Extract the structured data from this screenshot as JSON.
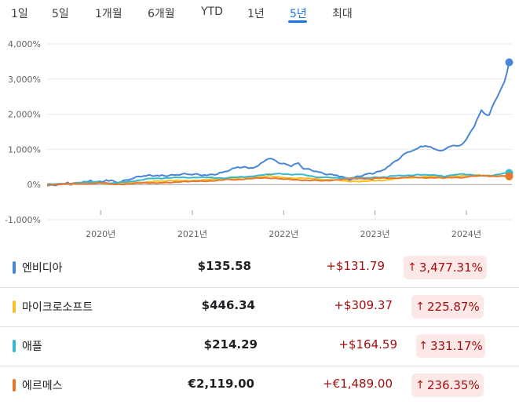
{
  "tabs": [
    {
      "label": "1일"
    },
    {
      "label": "5일"
    },
    {
      "label": "1개월"
    },
    {
      "label": "6개월"
    },
    {
      "label": "YTD"
    },
    {
      "label": "1년"
    },
    {
      "label": "5년"
    },
    {
      "label": "최대"
    }
  ],
  "active_tab": "5년",
  "chart_data": {
    "type": "line",
    "ylim": [
      -1000,
      4000
    ],
    "yticks": [
      4000,
      3000,
      2000,
      1000,
      0,
      -1000
    ],
    "ytick_labels": [
      "4,000%",
      "3,000%",
      "2,000%",
      "1,000%",
      "0%",
      "-1,000%"
    ],
    "xlim": [
      "2019-06",
      "2024-07"
    ],
    "xticks": [
      "2020-01",
      "2021-01",
      "2022-01",
      "2023-01",
      "2024-01"
    ],
    "xtick_labels": [
      "2020년",
      "2021년",
      "2022년",
      "2023년",
      "2024년"
    ],
    "series": [
      {
        "name": "엔비디아",
        "color": "#4a86d8",
        "points": [
          [
            "2019-06",
            0
          ],
          [
            "2019-09",
            25
          ],
          [
            "2019-12",
            90
          ],
          [
            "2020-02",
            120
          ],
          [
            "2020-03",
            70
          ],
          [
            "2020-05",
            180
          ],
          [
            "2020-07",
            230
          ],
          [
            "2020-09",
            270
          ],
          [
            "2020-11",
            290
          ],
          [
            "2021-01",
            270
          ],
          [
            "2021-03",
            280
          ],
          [
            "2021-05",
            350
          ],
          [
            "2021-07",
            460
          ],
          [
            "2021-09",
            500
          ],
          [
            "2021-10",
            560
          ],
          [
            "2021-11",
            750
          ],
          [
            "2021-12",
            690
          ],
          [
            "2022-01",
            560
          ],
          [
            "2022-02",
            540
          ],
          [
            "2022-03",
            600
          ],
          [
            "2022-04",
            420
          ],
          [
            "2022-06",
            330
          ],
          [
            "2022-08",
            290
          ],
          [
            "2022-09",
            190
          ],
          [
            "2022-10",
            150
          ],
          [
            "2022-12",
            300
          ],
          [
            "2023-02",
            420
          ],
          [
            "2023-03",
            550
          ],
          [
            "2023-05",
            900
          ],
          [
            "2023-06",
            980
          ],
          [
            "2023-07",
            1050
          ],
          [
            "2023-08",
            1100
          ],
          [
            "2023-09",
            1010
          ],
          [
            "2023-10",
            940
          ],
          [
            "2023-11",
            1120
          ],
          [
            "2023-12",
            1100
          ],
          [
            "2024-01",
            1250
          ],
          [
            "2024-02",
            1680
          ],
          [
            "2024-03",
            2100
          ],
          [
            "2024-04",
            1950
          ],
          [
            "2024-05",
            2500
          ],
          [
            "2024-06",
            2900
          ],
          [
            "2024-06-20",
            3477.31
          ]
        ]
      },
      {
        "name": "마이크로소프트",
        "color": "#f6c026",
        "points": [
          [
            "2019-06",
            0
          ],
          [
            "2020-01",
            50
          ],
          [
            "2020-03",
            30
          ],
          [
            "2020-09",
            100
          ],
          [
            "2021-01",
            120
          ],
          [
            "2021-06",
            170
          ],
          [
            "2021-11",
            240
          ],
          [
            "2022-01",
            200
          ],
          [
            "2022-06",
            150
          ],
          [
            "2022-10",
            90
          ],
          [
            "2023-01",
            110
          ],
          [
            "2023-06",
            200
          ],
          [
            "2023-12",
            250
          ],
          [
            "2024-03",
            270
          ],
          [
            "2024-06-20",
            225.87
          ]
        ]
      },
      {
        "name": "애플",
        "color": "#36b8d0",
        "points": [
          [
            "2019-06",
            0
          ],
          [
            "2019-12",
            70
          ],
          [
            "2020-03",
            40
          ],
          [
            "2020-08",
            180
          ],
          [
            "2021-01",
            200
          ],
          [
            "2021-06",
            190
          ],
          [
            "2021-12",
            300
          ],
          [
            "2022-03",
            290
          ],
          [
            "2022-06",
            200
          ],
          [
            "2022-12",
            180
          ],
          [
            "2023-03",
            230
          ],
          [
            "2023-07",
            290
          ],
          [
            "2023-10",
            240
          ],
          [
            "2023-12",
            290
          ],
          [
            "2024-04",
            250
          ],
          [
            "2024-06-20",
            331.17
          ]
        ]
      },
      {
        "name": "에르메스",
        "color": "#e8772e",
        "points": [
          [
            "2019-06",
            0
          ],
          [
            "2020-01",
            40
          ],
          [
            "2020-03",
            10
          ],
          [
            "2020-09",
            60
          ],
          [
            "2021-01",
            80
          ],
          [
            "2021-06",
            140
          ],
          [
            "2021-11",
            190
          ],
          [
            "2022-01",
            150
          ],
          [
            "2022-06",
            110
          ],
          [
            "2022-10",
            160
          ],
          [
            "2023-01",
            170
          ],
          [
            "2023-06",
            210
          ],
          [
            "2023-10",
            180
          ],
          [
            "2024-01",
            210
          ],
          [
            "2024-03",
            250
          ],
          [
            "2024-06-20",
            236.35
          ]
        ]
      }
    ]
  },
  "rows": [
    {
      "name": "엔비디아",
      "color": "#4a86d8",
      "price": "$135.58",
      "change": "+$131.79",
      "pct": "3,477.31%"
    },
    {
      "name": "마이크로소프트",
      "color": "#f6c026",
      "price": "$446.34",
      "change": "+$309.37",
      "pct": "225.87%"
    },
    {
      "name": "애플",
      "color": "#36b8d0",
      "price": "$214.29",
      "change": "+$164.59",
      "pct": "331.17%"
    },
    {
      "name": "에르메스",
      "color": "#e8772e",
      "price": "€2,119.00",
      "change": "+€1,489.00",
      "pct": "236.35%"
    }
  ]
}
